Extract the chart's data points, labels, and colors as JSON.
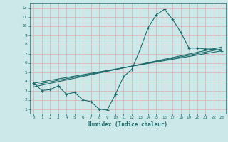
{
  "xlabel": "Humidex (Indice chaleur)",
  "background_color": "#cce8e8",
  "grid_color": "#d8b8b8",
  "line_color": "#1a6b6b",
  "xmin": -0.5,
  "xmax": 23.5,
  "ymin": 0.5,
  "ymax": 12.5,
  "line1_x": [
    0,
    1,
    2,
    3,
    4,
    5,
    6,
    7,
    8,
    9,
    10,
    11,
    12,
    13,
    14,
    15,
    16,
    17,
    18,
    19,
    20,
    21,
    22,
    23
  ],
  "line1_y": [
    3.8,
    3.0,
    3.1,
    3.5,
    2.6,
    2.8,
    2.0,
    1.8,
    1.0,
    0.9,
    2.6,
    4.5,
    5.3,
    7.4,
    9.8,
    11.2,
    11.8,
    10.7,
    9.3,
    7.6,
    7.6,
    7.5,
    7.5,
    7.3
  ],
  "line2_x": [
    0,
    23
  ],
  "line2_y": [
    3.8,
    7.3
  ],
  "line3_x": [
    0,
    23
  ],
  "line3_y": [
    3.6,
    7.5
  ],
  "line4_x": [
    0,
    23
  ],
  "line4_y": [
    3.4,
    7.7
  ],
  "xticks": [
    0,
    1,
    2,
    3,
    4,
    5,
    6,
    7,
    8,
    9,
    10,
    11,
    12,
    13,
    14,
    15,
    16,
    17,
    18,
    19,
    20,
    21,
    22,
    23
  ],
  "yticks": [
    1,
    2,
    3,
    4,
    5,
    6,
    7,
    8,
    9,
    10,
    11,
    12
  ]
}
